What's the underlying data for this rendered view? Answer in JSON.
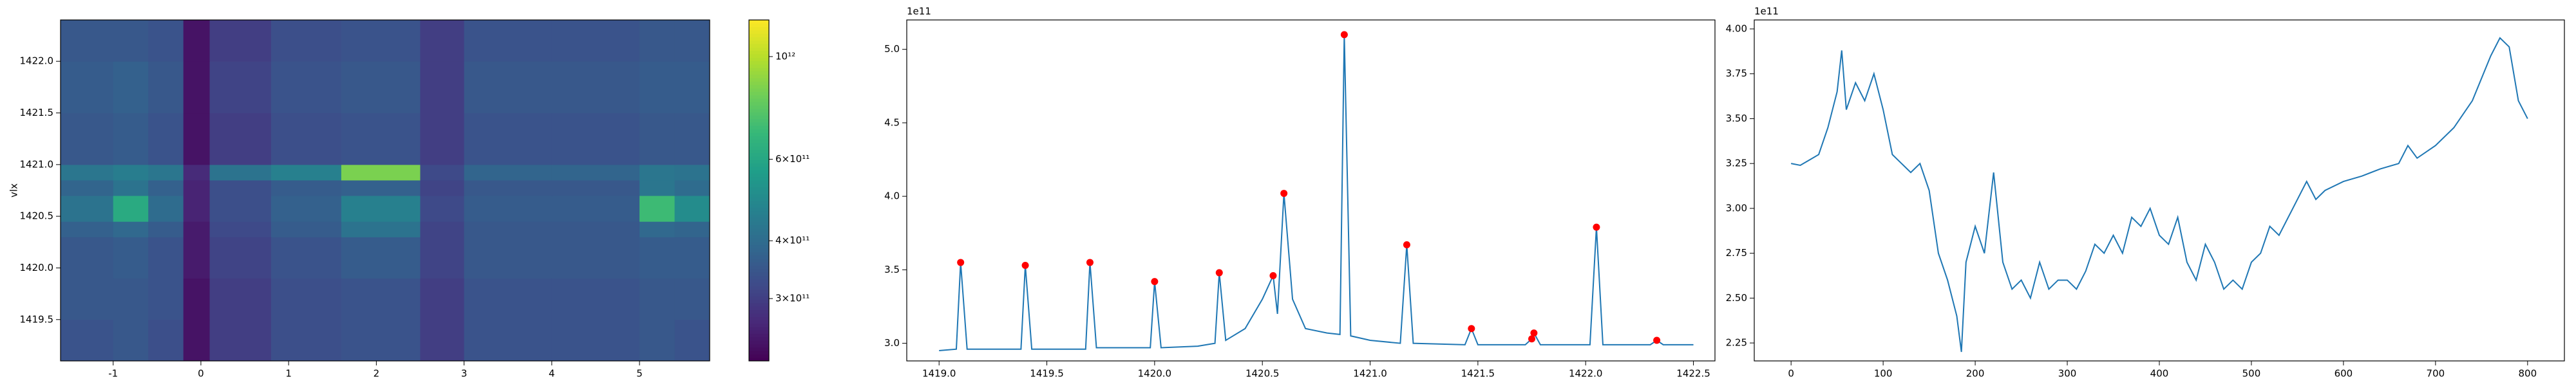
{
  "chart_data": [
    {
      "type": "heatmap",
      "y_label": "vlx",
      "xbins": [
        -1.6,
        -1.0,
        -0.6,
        -0.2,
        0.1,
        0.8,
        1.6,
        2.5,
        3.0,
        4.0,
        5.0,
        5.4,
        5.8
      ],
      "ybins": [
        1419.1,
        1419.5,
        1419.9,
        1420.3,
        1420.45,
        1420.7,
        1420.85,
        1421.0,
        1421.5,
        1422.0,
        1422.4
      ],
      "z": [
        [
          340000000000.0,
          350000000000.0,
          330000000000.0,
          240000000000.0,
          300000000000.0,
          330000000000.0,
          340000000000.0,
          300000000000.0,
          340000000000.0,
          340000000000.0,
          350000000000.0,
          340000000000.0
        ],
        [
          350000000000.0,
          350000000000.0,
          340000000000.0,
          240000000000.0,
          300000000000.0,
          330000000000.0,
          340000000000.0,
          300000000000.0,
          340000000000.0,
          340000000000.0,
          350000000000.0,
          350000000000.0
        ],
        [
          350000000000.0,
          360000000000.0,
          340000000000.0,
          250000000000.0,
          310000000000.0,
          340000000000.0,
          360000000000.0,
          310000000000.0,
          350000000000.0,
          350000000000.0,
          360000000000.0,
          360000000000.0
        ],
        [
          370000000000.0,
          390000000000.0,
          360000000000.0,
          250000000000.0,
          320000000000.0,
          360000000000.0,
          420000000000.0,
          310000000000.0,
          350000000000.0,
          350000000000.0,
          390000000000.0,
          380000000000.0
        ],
        [
          420000000000.0,
          620000000000.0,
          400000000000.0,
          260000000000.0,
          330000000000.0,
          370000000000.0,
          460000000000.0,
          320000000000.0,
          360000000000.0,
          360000000000.0,
          700000000000.0,
          500000000000.0
        ],
        [
          380000000000.0,
          420000000000.0,
          370000000000.0,
          260000000000.0,
          330000000000.0,
          360000000000.0,
          370000000000.0,
          310000000000.0,
          350000000000.0,
          350000000000.0,
          430000000000.0,
          400000000000.0
        ],
        [
          430000000000.0,
          450000000000.0,
          430000000000.0,
          270000000000.0,
          420000000000.0,
          460000000000.0,
          850000000000.0,
          320000000000.0,
          380000000000.0,
          380000000000.0,
          430000000000.0,
          420000000000.0
        ],
        [
          350000000000.0,
          360000000000.0,
          340000000000.0,
          240000000000.0,
          300000000000.0,
          330000000000.0,
          340000000000.0,
          300000000000.0,
          340000000000.0,
          340000000000.0,
          350000000000.0,
          350000000000.0
        ],
        [
          360000000000.0,
          370000000000.0,
          350000000000.0,
          240000000000.0,
          310000000000.0,
          340000000000.0,
          350000000000.0,
          300000000000.0,
          350000000000.0,
          350000000000.0,
          360000000000.0,
          360000000000.0
        ],
        [
          350000000000.0,
          350000000000.0,
          340000000000.0,
          240000000000.0,
          300000000000.0,
          330000000000.0,
          340000000000.0,
          300000000000.0,
          340000000000.0,
          340000000000.0,
          350000000000.0,
          350000000000.0
        ]
      ],
      "xlim": [
        -1.6,
        5.8
      ],
      "xticks": [
        -1,
        0,
        1,
        2,
        3,
        4,
        5
      ],
      "ylim": [
        1419.1,
        1422.4
      ],
      "yticks": [
        1419.5,
        {
          "value": 1420,
          "label": "1420.0"
        },
        1420.5,
        {
          "value": 1421,
          "label": "1421.0"
        },
        1421.5,
        {
          "value": 1422,
          "label": "1422.0"
        }
      ],
      "colorbar": {
        "scale": "log",
        "lim": [
          220000000000.0,
          1200000000000.0
        ],
        "colormap": "viridis",
        "ticks": [
          {
            "value": 300000000000.0,
            "label": "3×10¹¹"
          },
          {
            "value": 400000000000.0,
            "label": "4×10¹¹"
          },
          {
            "value": 600000000000.0,
            "label": "6×10¹¹"
          },
          {
            "value": 1000000000000.0,
            "label": "10¹²"
          }
        ]
      }
    },
    {
      "type": "line",
      "offset_label": "1e11",
      "series": [
        {
          "style": "line",
          "color": "#1f77b4",
          "x": [
            1419.0,
            1419.08,
            1419.1,
            1419.13,
            1419.38,
            1419.4,
            1419.43,
            1419.68,
            1419.7,
            1419.73,
            1419.98,
            1420.0,
            1420.03,
            1420.2,
            1420.28,
            1420.3,
            1420.33,
            1420.42,
            1420.5,
            1420.55,
            1420.57,
            1420.6,
            1420.64,
            1420.7,
            1420.8,
            1420.86,
            1420.88,
            1420.91,
            1421.0,
            1421.14,
            1421.17,
            1421.2,
            1421.44,
            1421.47,
            1421.5,
            1421.72,
            1421.75,
            1421.76,
            1421.79,
            1422.02,
            1422.05,
            1422.08,
            1422.3,
            1422.33,
            1422.36,
            1422.5
          ],
          "values": [
            2.95,
            2.96,
            3.55,
            2.96,
            2.96,
            3.53,
            2.96,
            2.96,
            3.55,
            2.97,
            2.97,
            3.42,
            2.97,
            2.98,
            3.0,
            3.48,
            3.02,
            3.1,
            3.3,
            3.46,
            3.2,
            4.02,
            3.3,
            3.1,
            3.07,
            3.06,
            5.1,
            3.05,
            3.02,
            3.0,
            3.67,
            3.0,
            2.99,
            3.1,
            2.99,
            2.99,
            3.03,
            3.07,
            2.99,
            2.99,
            3.79,
            2.99,
            2.99,
            3.02,
            2.99,
            2.99
          ]
        },
        {
          "style": "markers",
          "color": "#ff0000",
          "x": [
            1419.1,
            1419.4,
            1419.7,
            1420.0,
            1420.3,
            1420.55,
            1420.6,
            1420.88,
            1421.17,
            1421.47,
            1421.75,
            1421.76,
            1422.05,
            1422.33
          ],
          "values": [
            3.55,
            3.53,
            3.55,
            3.42,
            3.48,
            3.46,
            4.02,
            5.1,
            3.67,
            3.1,
            3.03,
            3.07,
            3.79,
            3.02
          ]
        }
      ],
      "xlim": [
        1418.85,
        1422.6
      ],
      "xticks": [
        {
          "value": 1419,
          "label": "1419.0"
        },
        1419.5,
        {
          "value": 1420,
          "label": "1420.0"
        },
        1420.5,
        {
          "value": 1421,
          "label": "1421.0"
        },
        1421.5,
        {
          "value": 1422,
          "label": "1422.0"
        },
        1422.5
      ],
      "ylim": [
        2.88,
        5.2
      ],
      "yticks": [
        {
          "value": 3,
          "label": "3.0"
        },
        3.5,
        {
          "value": 4,
          "label": "4.0"
        },
        4.5,
        {
          "value": 5,
          "label": "5.0"
        }
      ]
    },
    {
      "type": "line",
      "offset_label": "1e11",
      "series": [
        {
          "style": "line",
          "color": "#1f77b4",
          "x": [
            0,
            10,
            20,
            30,
            40,
            50,
            55,
            60,
            70,
            80,
            90,
            100,
            110,
            120,
            130,
            140,
            150,
            160,
            170,
            180,
            185,
            190,
            200,
            210,
            220,
            230,
            240,
            250,
            260,
            270,
            280,
            290,
            300,
            310,
            320,
            330,
            340,
            350,
            360,
            370,
            380,
            390,
            400,
            410,
            420,
            430,
            440,
            450,
            460,
            470,
            480,
            490,
            500,
            510,
            520,
            530,
            540,
            550,
            560,
            570,
            580,
            600,
            620,
            640,
            660,
            670,
            680,
            700,
            720,
            740,
            760,
            770,
            780,
            790,
            800
          ],
          "values": [
            3.25,
            3.24,
            3.27,
            3.3,
            3.45,
            3.65,
            3.88,
            3.55,
            3.7,
            3.6,
            3.75,
            3.55,
            3.3,
            3.25,
            3.2,
            3.25,
            3.1,
            2.75,
            2.6,
            2.4,
            2.2,
            2.7,
            2.9,
            2.75,
            3.2,
            2.7,
            2.55,
            2.6,
            2.5,
            2.7,
            2.55,
            2.6,
            2.6,
            2.55,
            2.65,
            2.8,
            2.75,
            2.85,
            2.75,
            2.95,
            2.9,
            3.0,
            2.85,
            2.8,
            2.95,
            2.7,
            2.6,
            2.8,
            2.7,
            2.55,
            2.6,
            2.55,
            2.7,
            2.75,
            2.9,
            2.85,
            2.95,
            3.05,
            3.15,
            3.05,
            3.1,
            3.15,
            3.18,
            3.22,
            3.25,
            3.35,
            3.28,
            3.35,
            3.45,
            3.6,
            3.85,
            3.95,
            3.9,
            3.6,
            3.5
          ]
        }
      ],
      "xlim": [
        -40,
        840
      ],
      "xticks": [
        0,
        100,
        200,
        300,
        400,
        500,
        600,
        700,
        800
      ],
      "ylim": [
        2.15,
        4.05
      ],
      "yticks": [
        2.25,
        {
          "value": 2.5,
          "label": "2.50"
        },
        2.75,
        {
          "value": 3,
          "label": "3.00"
        },
        3.25,
        {
          "value": 3.5,
          "label": "3.50"
        },
        3.75,
        {
          "value": 4,
          "label": "4.00"
        }
      ]
    }
  ]
}
